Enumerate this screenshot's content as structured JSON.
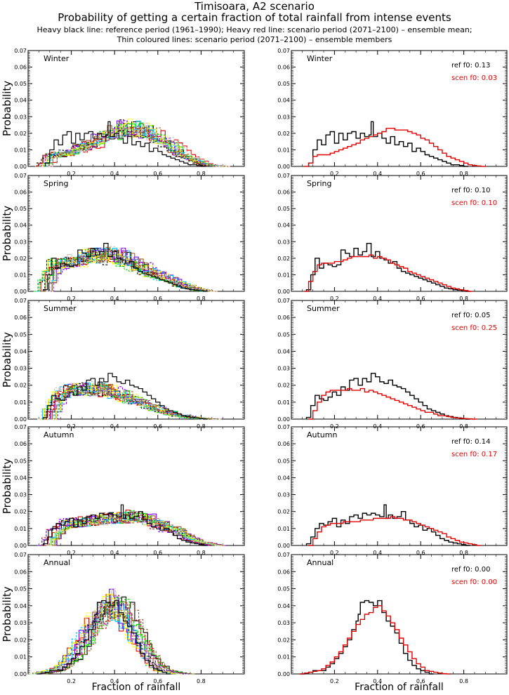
{
  "header": {
    "title": "Timisoara, A2 scenario",
    "subtitle": "Probability of getting a certain fraction of total rainfall from intense events",
    "note1": "Heavy black line: reference period (1961–1990); Heavy red line: scenario period (2071–2100) – ensemble mean;",
    "note2": "Thin coloured lines: scenario period (2071–2100) – ensemble members"
  },
  "colors": {
    "reference": "#000000",
    "scenario": "#e00000",
    "members": [
      "#000000",
      "#e00000",
      "#00dd00",
      "#7b00ff",
      "#00c0ff",
      "#ffff00",
      "#a05a2c",
      "#c8c8c8"
    ]
  },
  "chart_data": {
    "type": "line",
    "layout": "5 rows x 2 columns of step histograms",
    "xlabel": "Fraction of rainfall",
    "ylabel": "Probability",
    "xlim": [
      0,
      1
    ],
    "ylim": [
      0,
      0.07
    ],
    "xticks": [
      "0.2",
      "0.4",
      "0.6",
      "0.8"
    ],
    "yticks": [
      "0.00",
      "0.01",
      "0.02",
      "0.03",
      "0.04",
      "0.05",
      "0.06",
      "0.07"
    ],
    "grid": false,
    "panels": [
      {
        "season": "Winter",
        "ref_f0": "ref  f0: 0.13",
        "scen_f0": "scen f0: 0.03",
        "ref": {
          "x": [
            0.08,
            0.1,
            0.12,
            0.14,
            0.16,
            0.18,
            0.2,
            0.22,
            0.24,
            0.26,
            0.28,
            0.3,
            0.32,
            0.34,
            0.36,
            0.37,
            0.38,
            0.4,
            0.42,
            0.44,
            0.46,
            0.48,
            0.5,
            0.52,
            0.54,
            0.56,
            0.58,
            0.6,
            0.62,
            0.64,
            0.66,
            0.68,
            0.7,
            0.72,
            0.74,
            0.76,
            0.78,
            0.8
          ],
          "y": [
            0.002,
            0.01,
            0.016,
            0.013,
            0.019,
            0.021,
            0.014,
            0.02,
            0.016,
            0.02,
            0.021,
            0.017,
            0.02,
            0.018,
            0.019,
            0.027,
            0.018,
            0.02,
            0.017,
            0.014,
            0.018,
            0.013,
            0.015,
            0.012,
            0.014,
            0.009,
            0.011,
            0.009,
            0.007,
            0.006,
            0.005,
            0.004,
            0.003,
            0.002,
            0.001,
            0.001,
            0.0005,
            0.0
          ]
        },
        "scen": {
          "x": [
            0.06,
            0.08,
            0.1,
            0.12,
            0.14,
            0.16,
            0.18,
            0.2,
            0.22,
            0.24,
            0.26,
            0.28,
            0.3,
            0.32,
            0.34,
            0.36,
            0.38,
            0.4,
            0.42,
            0.44,
            0.46,
            0.48,
            0.5,
            0.52,
            0.54,
            0.56,
            0.58,
            0.6,
            0.62,
            0.64,
            0.66,
            0.68,
            0.7,
            0.72,
            0.74,
            0.76,
            0.78,
            0.8,
            0.82,
            0.84,
            0.86,
            0.88
          ],
          "y": [
            0.0,
            0.002,
            0.006,
            0.007,
            0.007,
            0.007,
            0.008,
            0.009,
            0.01,
            0.011,
            0.012,
            0.013,
            0.014,
            0.016,
            0.017,
            0.018,
            0.019,
            0.02,
            0.021,
            0.023,
            0.023,
            0.022,
            0.022,
            0.022,
            0.021,
            0.02,
            0.019,
            0.017,
            0.016,
            0.014,
            0.012,
            0.01,
            0.008,
            0.006,
            0.005,
            0.004,
            0.003,
            0.002,
            0.001,
            0.0005,
            0.0003,
            0.0
          ]
        }
      },
      {
        "season": "Spring",
        "ref_f0": "ref  f0: 0.10",
        "scen_f0": "scen f0: 0.10",
        "ref": {
          "x": [
            0.07,
            0.09,
            0.11,
            0.13,
            0.15,
            0.17,
            0.19,
            0.21,
            0.23,
            0.25,
            0.27,
            0.29,
            0.31,
            0.33,
            0.35,
            0.37,
            0.39,
            0.41,
            0.43,
            0.45,
            0.47,
            0.49,
            0.51,
            0.53,
            0.55,
            0.57,
            0.59,
            0.61,
            0.63,
            0.65,
            0.67,
            0.69,
            0.71,
            0.73,
            0.75,
            0.77,
            0.79,
            0.81
          ],
          "y": [
            0.001,
            0.01,
            0.02,
            0.014,
            0.017,
            0.016,
            0.015,
            0.016,
            0.025,
            0.023,
            0.021,
            0.026,
            0.022,
            0.024,
            0.029,
            0.021,
            0.024,
            0.02,
            0.019,
            0.017,
            0.018,
            0.014,
            0.012,
            0.011,
            0.01,
            0.009,
            0.008,
            0.007,
            0.006,
            0.005,
            0.004,
            0.003,
            0.002,
            0.0015,
            0.001,
            0.0007,
            0.0003,
            0.0
          ]
        },
        "scen": {
          "x": [
            0.06,
            0.08,
            0.1,
            0.12,
            0.14,
            0.16,
            0.18,
            0.2,
            0.22,
            0.24,
            0.26,
            0.28,
            0.3,
            0.32,
            0.34,
            0.36,
            0.38,
            0.4,
            0.42,
            0.44,
            0.46,
            0.48,
            0.5,
            0.52,
            0.54,
            0.56,
            0.58,
            0.6,
            0.62,
            0.64,
            0.66,
            0.68,
            0.7,
            0.72,
            0.74,
            0.76,
            0.78,
            0.8,
            0.82
          ],
          "y": [
            0.0,
            0.006,
            0.012,
            0.016,
            0.017,
            0.017,
            0.017,
            0.018,
            0.018,
            0.019,
            0.02,
            0.021,
            0.021,
            0.021,
            0.021,
            0.022,
            0.02,
            0.021,
            0.02,
            0.019,
            0.017,
            0.016,
            0.015,
            0.014,
            0.012,
            0.011,
            0.01,
            0.009,
            0.008,
            0.007,
            0.006,
            0.005,
            0.004,
            0.003,
            0.002,
            0.0015,
            0.001,
            0.0005,
            0.0
          ]
        }
      },
      {
        "season": "Summer",
        "ref_f0": "ref  f0: 0.05",
        "scen_f0": "scen f0: 0.25",
        "ref": {
          "x": [
            0.07,
            0.09,
            0.11,
            0.13,
            0.15,
            0.17,
            0.19,
            0.21,
            0.23,
            0.25,
            0.27,
            0.29,
            0.31,
            0.33,
            0.35,
            0.37,
            0.39,
            0.41,
            0.43,
            0.45,
            0.47,
            0.49,
            0.51,
            0.53,
            0.55,
            0.57,
            0.59,
            0.61,
            0.63,
            0.65,
            0.67,
            0.69,
            0.71,
            0.73,
            0.75,
            0.77,
            0.79,
            0.81
          ],
          "y": [
            0.001,
            0.008,
            0.014,
            0.012,
            0.011,
            0.013,
            0.016,
            0.014,
            0.019,
            0.017,
            0.023,
            0.024,
            0.02,
            0.024,
            0.022,
            0.027,
            0.025,
            0.022,
            0.021,
            0.023,
            0.02,
            0.019,
            0.018,
            0.016,
            0.014,
            0.012,
            0.01,
            0.008,
            0.006,
            0.005,
            0.004,
            0.003,
            0.002,
            0.0015,
            0.001,
            0.0007,
            0.0003,
            0.0
          ]
        },
        "scen": {
          "x": [
            0.08,
            0.1,
            0.12,
            0.14,
            0.16,
            0.18,
            0.2,
            0.22,
            0.24,
            0.26,
            0.28,
            0.3,
            0.32,
            0.34,
            0.36,
            0.38,
            0.4,
            0.42,
            0.44,
            0.46,
            0.48,
            0.5,
            0.52,
            0.54,
            0.56,
            0.58,
            0.6,
            0.62,
            0.64,
            0.66,
            0.68,
            0.7,
            0.72,
            0.74,
            0.76,
            0.78,
            0.8,
            0.82,
            0.84
          ],
          "y": [
            0.0,
            0.005,
            0.01,
            0.014,
            0.016,
            0.017,
            0.017,
            0.017,
            0.017,
            0.018,
            0.017,
            0.017,
            0.018,
            0.016,
            0.017,
            0.016,
            0.015,
            0.014,
            0.013,
            0.012,
            0.011,
            0.01,
            0.009,
            0.008,
            0.007,
            0.006,
            0.005,
            0.004,
            0.004,
            0.003,
            0.002,
            0.002,
            0.0015,
            0.001,
            0.0007,
            0.0005,
            0.0003,
            0.0002,
            0.0
          ]
        }
      },
      {
        "season": "Autumn",
        "ref_f0": "ref  f0: 0.14",
        "scen_f0": "scen f0: 0.17",
        "ref": {
          "x": [
            0.07,
            0.09,
            0.11,
            0.13,
            0.15,
            0.17,
            0.19,
            0.21,
            0.23,
            0.25,
            0.27,
            0.29,
            0.31,
            0.33,
            0.35,
            0.37,
            0.39,
            0.41,
            0.43,
            0.44,
            0.45,
            0.47,
            0.49,
            0.51,
            0.53,
            0.55,
            0.57,
            0.59,
            0.61,
            0.63,
            0.65,
            0.67,
            0.69,
            0.71,
            0.73,
            0.75,
            0.77,
            0.79,
            0.81
          ],
          "y": [
            0.001,
            0.005,
            0.01,
            0.013,
            0.012,
            0.014,
            0.016,
            0.011,
            0.015,
            0.013,
            0.017,
            0.018,
            0.016,
            0.019,
            0.018,
            0.019,
            0.018,
            0.017,
            0.024,
            0.016,
            0.018,
            0.016,
            0.017,
            0.02,
            0.015,
            0.013,
            0.011,
            0.012,
            0.009,
            0.01,
            0.008,
            0.006,
            0.004,
            0.003,
            0.002,
            0.0015,
            0.001,
            0.0005,
            0.0
          ]
        },
        "scen": {
          "x": [
            0.08,
            0.1,
            0.12,
            0.14,
            0.16,
            0.18,
            0.2,
            0.22,
            0.24,
            0.26,
            0.28,
            0.3,
            0.32,
            0.34,
            0.36,
            0.38,
            0.4,
            0.42,
            0.44,
            0.46,
            0.48,
            0.5,
            0.52,
            0.54,
            0.56,
            0.58,
            0.6,
            0.62,
            0.64,
            0.66,
            0.68,
            0.7,
            0.72,
            0.74,
            0.76,
            0.78,
            0.8,
            0.82,
            0.84,
            0.86
          ],
          "y": [
            0.0,
            0.004,
            0.008,
            0.011,
            0.012,
            0.013,
            0.013,
            0.013,
            0.014,
            0.014,
            0.014,
            0.014,
            0.015,
            0.015,
            0.015,
            0.016,
            0.016,
            0.016,
            0.016,
            0.017,
            0.016,
            0.016,
            0.015,
            0.015,
            0.014,
            0.013,
            0.012,
            0.011,
            0.01,
            0.009,
            0.008,
            0.007,
            0.005,
            0.004,
            0.003,
            0.002,
            0.0015,
            0.001,
            0.0005,
            0.0
          ]
        }
      },
      {
        "season": "Annual",
        "ref_f0": "ref  f0: 0.00",
        "scen_f0": "scen f0: 0.00",
        "ref": {
          "x": [
            0.04,
            0.06,
            0.08,
            0.1,
            0.12,
            0.14,
            0.16,
            0.18,
            0.2,
            0.22,
            0.24,
            0.26,
            0.28,
            0.3,
            0.31,
            0.32,
            0.34,
            0.36,
            0.38,
            0.4,
            0.42,
            0.44,
            0.46,
            0.48,
            0.5,
            0.52,
            0.54,
            0.56,
            0.58,
            0.6,
            0.62,
            0.64
          ],
          "y": [
            0.0,
            0.0005,
            0.001,
            0.002,
            0.002,
            0.002,
            0.004,
            0.006,
            0.009,
            0.012,
            0.016,
            0.02,
            0.026,
            0.031,
            0.035,
            0.042,
            0.043,
            0.042,
            0.04,
            0.043,
            0.036,
            0.031,
            0.028,
            0.024,
            0.018,
            0.012,
            0.008,
            0.005,
            0.003,
            0.002,
            0.001,
            0.0
          ]
        },
        "scen": {
          "x": [
            0.04,
            0.06,
            0.08,
            0.1,
            0.12,
            0.14,
            0.16,
            0.18,
            0.2,
            0.22,
            0.24,
            0.26,
            0.28,
            0.3,
            0.32,
            0.34,
            0.36,
            0.38,
            0.4,
            0.42,
            0.44,
            0.46,
            0.48,
            0.5,
            0.52,
            0.54,
            0.56,
            0.58,
            0.6,
            0.62,
            0.64,
            0.66,
            0.68,
            0.7,
            0.72
          ],
          "y": [
            0.0,
            0.0005,
            0.001,
            0.0015,
            0.002,
            0.003,
            0.005,
            0.007,
            0.01,
            0.013,
            0.017,
            0.021,
            0.025,
            0.029,
            0.032,
            0.035,
            0.036,
            0.039,
            0.04,
            0.037,
            0.034,
            0.03,
            0.026,
            0.021,
            0.017,
            0.013,
            0.009,
            0.006,
            0.004,
            0.002,
            0.0015,
            0.001,
            0.0005,
            0.0002,
            0.0
          ]
        }
      }
    ]
  }
}
